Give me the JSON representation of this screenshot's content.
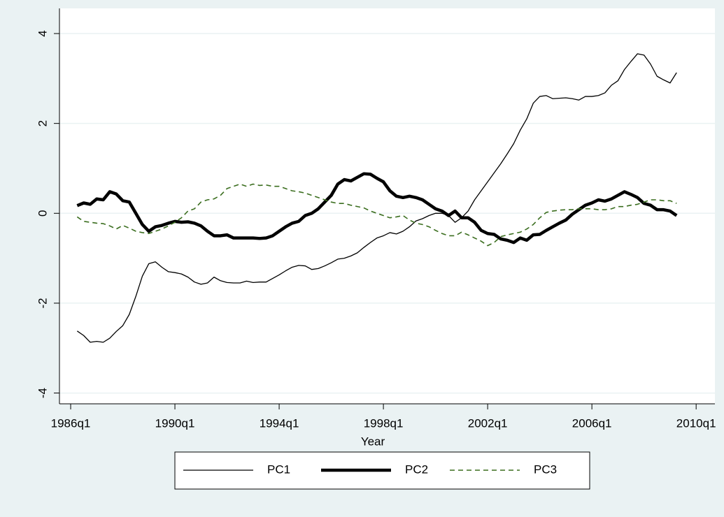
{
  "chart_data": {
    "type": "line",
    "x_label": "Year",
    "x": [
      1986.25,
      1986.5,
      1986.75,
      1987,
      1987.25,
      1987.5,
      1987.75,
      1988,
      1988.25,
      1988.5,
      1988.75,
      1989,
      1989.25,
      1989.5,
      1989.75,
      1990,
      1990.25,
      1990.5,
      1990.75,
      1991,
      1991.25,
      1991.5,
      1991.75,
      1992,
      1992.25,
      1992.5,
      1992.75,
      1993,
      1993.25,
      1993.5,
      1993.75,
      1994,
      1994.25,
      1994.5,
      1994.75,
      1995,
      1995.25,
      1995.5,
      1995.75,
      1996,
      1996.25,
      1996.5,
      1996.75,
      1997,
      1997.25,
      1997.5,
      1997.75,
      1998,
      1998.25,
      1998.5,
      1998.75,
      1999,
      1999.25,
      1999.5,
      1999.75,
      2000,
      2000.25,
      2000.5,
      2000.75,
      2001,
      2001.25,
      2001.5,
      2001.75,
      2002,
      2002.25,
      2002.5,
      2002.75,
      2003,
      2003.25,
      2003.5,
      2003.75,
      2004,
      2004.25,
      2004.5,
      2004.75,
      2005,
      2005.25,
      2005.5,
      2005.75,
      2006,
      2006.25,
      2006.5,
      2006.75,
      2007,
      2007.25,
      2007.5,
      2007.75,
      2008,
      2008.25,
      2008.5,
      2008.75,
      2009,
      2009.25
    ],
    "series": [
      {
        "name": "PC1",
        "color": "#000000",
        "line_width": 1.3,
        "dash": "none",
        "values": [
          -2.62,
          -2.72,
          -2.87,
          -2.85,
          -2.87,
          -2.78,
          -2.63,
          -2.5,
          -2.25,
          -1.85,
          -1.4,
          -1.12,
          -1.08,
          -1.2,
          -1.3,
          -1.32,
          -1.35,
          -1.42,
          -1.53,
          -1.58,
          -1.55,
          -1.42,
          -1.5,
          -1.54,
          -1.55,
          -1.55,
          -1.51,
          -1.54,
          -1.53,
          -1.53,
          -1.45,
          -1.37,
          -1.28,
          -1.2,
          -1.16,
          -1.17,
          -1.25,
          -1.23,
          -1.17,
          -1.1,
          -1.02,
          -1.0,
          -0.95,
          -0.88,
          -0.76,
          -0.65,
          -0.55,
          -0.5,
          -0.43,
          -0.46,
          -0.4,
          -0.3,
          -0.17,
          -0.12,
          -0.05,
          0.0,
          0.0,
          -0.05,
          -0.2,
          -0.1,
          0.05,
          0.3,
          0.5,
          0.7,
          0.9,
          1.1,
          1.32,
          1.55,
          1.85,
          2.1,
          2.45,
          2.6,
          2.62,
          2.55,
          2.56,
          2.57,
          2.55,
          2.52,
          2.6,
          2.6,
          2.62,
          2.68,
          2.85,
          2.95,
          3.2,
          3.38,
          3.55,
          3.52,
          3.32,
          3.05,
          2.97,
          2.9,
          3.13
        ]
      },
      {
        "name": "PC2",
        "color": "#000000",
        "line_width": 4.5,
        "dash": "none",
        "values": [
          0.17,
          0.23,
          0.2,
          0.32,
          0.3,
          0.48,
          0.43,
          0.28,
          0.25,
          0.0,
          -0.25,
          -0.4,
          -0.3,
          -0.27,
          -0.22,
          -0.18,
          -0.2,
          -0.19,
          -0.22,
          -0.28,
          -0.4,
          -0.5,
          -0.5,
          -0.48,
          -0.55,
          -0.55,
          -0.55,
          -0.55,
          -0.56,
          -0.55,
          -0.5,
          -0.4,
          -0.3,
          -0.22,
          -0.18,
          -0.05,
          0.0,
          0.1,
          0.25,
          0.4,
          0.65,
          0.75,
          0.72,
          0.8,
          0.88,
          0.87,
          0.78,
          0.7,
          0.5,
          0.38,
          0.35,
          0.38,
          0.35,
          0.3,
          0.2,
          0.1,
          0.05,
          -0.05,
          0.05,
          -0.1,
          -0.1,
          -0.2,
          -0.38,
          -0.45,
          -0.47,
          -0.57,
          -0.6,
          -0.65,
          -0.55,
          -0.6,
          -0.48,
          -0.47,
          -0.38,
          -0.3,
          -0.22,
          -0.15,
          -0.02,
          0.08,
          0.18,
          0.23,
          0.3,
          0.27,
          0.32,
          0.4,
          0.48,
          0.42,
          0.35,
          0.22,
          0.18,
          0.08,
          0.08,
          0.05,
          -0.05
        ]
      },
      {
        "name": "PC3",
        "color": "#3b6e1f",
        "line_width": 1.6,
        "dash": "7 5",
        "values": [
          -0.08,
          -0.18,
          -0.2,
          -0.22,
          -0.23,
          -0.28,
          -0.35,
          -0.27,
          -0.33,
          -0.4,
          -0.43,
          -0.45,
          -0.4,
          -0.35,
          -0.28,
          -0.2,
          -0.1,
          0.05,
          0.1,
          0.25,
          0.3,
          0.32,
          0.4,
          0.55,
          0.6,
          0.65,
          0.6,
          0.65,
          0.62,
          0.63,
          0.6,
          0.6,
          0.55,
          0.5,
          0.48,
          0.45,
          0.4,
          0.35,
          0.3,
          0.25,
          0.22,
          0.22,
          0.18,
          0.15,
          0.12,
          0.05,
          0.0,
          -0.05,
          -0.1,
          -0.08,
          -0.05,
          -0.15,
          -0.22,
          -0.25,
          -0.3,
          -0.38,
          -0.45,
          -0.5,
          -0.5,
          -0.42,
          -0.48,
          -0.55,
          -0.62,
          -0.72,
          -0.65,
          -0.52,
          -0.48,
          -0.45,
          -0.42,
          -0.35,
          -0.25,
          -0.1,
          0.02,
          0.05,
          0.07,
          0.08,
          0.08,
          0.1,
          0.1,
          0.1,
          0.08,
          0.08,
          0.1,
          0.15,
          0.15,
          0.18,
          0.2,
          0.25,
          0.3,
          0.3,
          0.28,
          0.28,
          0.22
        ]
      }
    ],
    "xlim": [
      1985.57,
      2010.72
    ],
    "xticks": [
      {
        "value": 1986,
        "label": "1986q1"
      },
      {
        "value": 1990,
        "label": "1990q1"
      },
      {
        "value": 1994,
        "label": "1994q1"
      },
      {
        "value": 1998,
        "label": "1998q1"
      },
      {
        "value": 2002,
        "label": "2002q1"
      },
      {
        "value": 2006,
        "label": "2006q1"
      },
      {
        "value": 2010,
        "label": "2010q1"
      }
    ],
    "ylim": [
      -4.24,
      4.56
    ],
    "yticks": [
      -4,
      -2,
      0,
      2,
      4
    ],
    "grid": true
  }
}
